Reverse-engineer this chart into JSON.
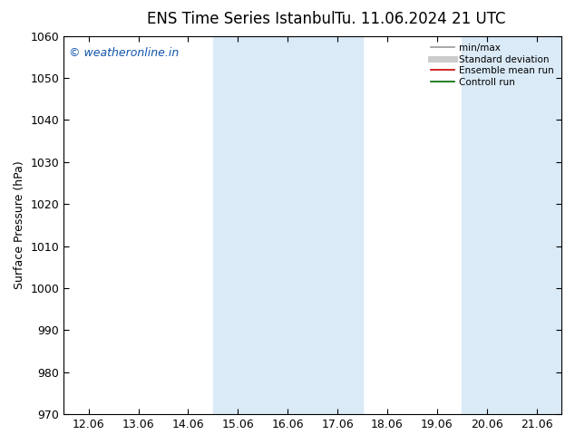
{
  "title_left": "ENS Time Series Istanbul",
  "title_right": "Tu. 11.06.2024 21 UTC",
  "ylabel": "Surface Pressure (hPa)",
  "ylim": [
    970,
    1060
  ],
  "yticks": [
    970,
    980,
    990,
    1000,
    1010,
    1020,
    1030,
    1040,
    1050,
    1060
  ],
  "xlabels": [
    "12.06",
    "13.06",
    "14.06",
    "15.06",
    "16.06",
    "17.06",
    "18.06",
    "19.06",
    "20.06",
    "21.06"
  ],
  "shade_bands": [
    {
      "xmin": 3,
      "xmax": 5
    },
    {
      "xmin": 8,
      "xmax": 9
    }
  ],
  "shade_color": "#daeaf7",
  "watermark": "© weatheronline.in",
  "watermark_color": "#1155aa",
  "legend_items": [
    {
      "label": "min/max",
      "color": "#999999",
      "lw": 1.2,
      "ls": "-"
    },
    {
      "label": "Standard deviation",
      "color": "#cccccc",
      "lw": 5,
      "ls": "-"
    },
    {
      "label": "Ensemble mean run",
      "color": "#cc0000",
      "lw": 1.2,
      "ls": "-"
    },
    {
      "label": "Controll run",
      "color": "#006600",
      "lw": 1.2,
      "ls": "-"
    }
  ],
  "bg_color": "#ffffff",
  "plot_bg_color": "#ffffff",
  "title_fontsize": 12,
  "tick_fontsize": 9,
  "ylabel_fontsize": 9,
  "watermark_fontsize": 9
}
